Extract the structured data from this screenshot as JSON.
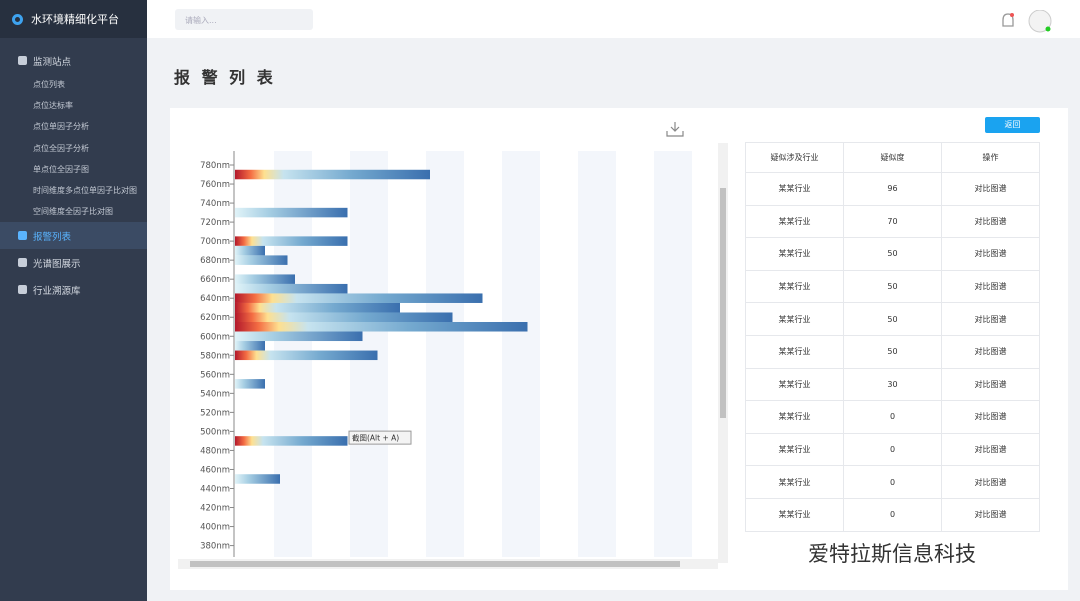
{
  "sidebar": {
    "logo": "水环境精细化平台",
    "sections": [
      {
        "label": "监测站点",
        "items": [
          "点位列表",
          "点位达标率",
          "点位单因子分析",
          "点位全因子分析",
          "单点位全因子图",
          "时间维度多点位单因子比对图",
          "空间维度全因子比对图"
        ]
      },
      {
        "label": "报警列表"
      },
      {
        "label": "光谱图展示"
      },
      {
        "label": "行业溯源库"
      }
    ]
  },
  "header": {
    "search_placeholder": "请输入..."
  },
  "page_title": "报 警 列 表",
  "back_button": "返回",
  "chart": {
    "type": "heatmap",
    "ylim": [
      368,
      790
    ],
    "yticks": [
      {
        "value": 780,
        "label": "780nm"
      },
      {
        "value": 760,
        "label": "760nm"
      },
      {
        "value": 740,
        "label": "740nm"
      },
      {
        "value": 720,
        "label": "720nm"
      },
      {
        "value": 700,
        "label": "700nm"
      },
      {
        "value": 680,
        "label": "680nm"
      },
      {
        "value": 660,
        "label": "660nm"
      },
      {
        "value": 640,
        "label": "640nm"
      },
      {
        "value": 620,
        "label": "620nm"
      },
      {
        "value": 600,
        "label": "600nm"
      },
      {
        "value": 580,
        "label": "580nm"
      },
      {
        "value": 560,
        "label": "560nm"
      },
      {
        "value": 540,
        "label": "540nm"
      },
      {
        "value": 520,
        "label": "520nm"
      },
      {
        "value": 500,
        "label": "500nm"
      },
      {
        "value": 480,
        "label": "480nm"
      },
      {
        "value": 460,
        "label": "460nm"
      },
      {
        "value": 440,
        "label": "440nm"
      },
      {
        "value": 420,
        "label": "420nm"
      },
      {
        "value": 400,
        "label": "400nm"
      },
      {
        "value": 380,
        "label": "380nm"
      }
    ],
    "rows": [
      {
        "wavelength": 770,
        "cells": 26,
        "hot": true
      },
      {
        "wavelength": 730,
        "cells": 15,
        "hot": false
      },
      {
        "wavelength": 700,
        "cells": 15,
        "hot": true
      },
      {
        "wavelength": 690,
        "cells": 4,
        "hot": false
      },
      {
        "wavelength": 680,
        "cells": 7,
        "hot": false
      },
      {
        "wavelength": 660,
        "cells": 8,
        "hot": false
      },
      {
        "wavelength": 650,
        "cells": 15,
        "hot": false
      },
      {
        "wavelength": 640,
        "cells": 33,
        "hot": true
      },
      {
        "wavelength": 630,
        "cells": 22,
        "hot": true
      },
      {
        "wavelength": 620,
        "cells": 29,
        "hot": true
      },
      {
        "wavelength": 610,
        "cells": 39,
        "hot": true
      },
      {
        "wavelength": 600,
        "cells": 17,
        "hot": false
      },
      {
        "wavelength": 590,
        "cells": 4,
        "hot": false
      },
      {
        "wavelength": 580,
        "cells": 19,
        "hot": true
      },
      {
        "wavelength": 550,
        "cells": 4,
        "hot": false
      },
      {
        "wavelength": 490,
        "cells": 15,
        "hot": true
      },
      {
        "wavelength": 450,
        "cells": 6,
        "hot": false
      }
    ],
    "tooltip": "截图(Alt + A)"
  },
  "table": {
    "headers": [
      "疑似涉及行业",
      "疑似度",
      "操作"
    ],
    "rows": [
      [
        "某某行业",
        96,
        "对比图谱"
      ],
      [
        "某某行业",
        70,
        "对比图谱"
      ],
      [
        "某某行业",
        50,
        "对比图谱"
      ],
      [
        "某某行业",
        50,
        "对比图谱"
      ],
      [
        "某某行业",
        50,
        "对比图谱"
      ],
      [
        "某某行业",
        50,
        "对比图谱"
      ],
      [
        "某某行业",
        30,
        "对比图谱"
      ],
      [
        "某某行业",
        0,
        "对比图谱"
      ],
      [
        "某某行业",
        0,
        "对比图谱"
      ],
      [
        "某某行业",
        0,
        "对比图谱"
      ],
      [
        "某某行业",
        0,
        "对比图谱"
      ]
    ]
  },
  "watermark": "爱特拉斯信息科技"
}
